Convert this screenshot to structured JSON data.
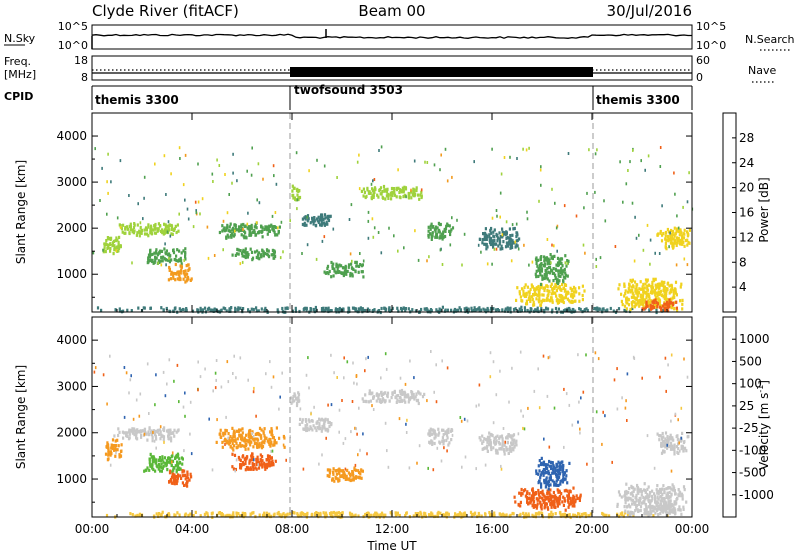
{
  "header": {
    "station": "Clyde River (fitACF)",
    "beam": "Beam 00",
    "date": "30/Jul/2016"
  },
  "panels": {
    "nsky": {
      "label": "N.Sky",
      "right_label": "N.Search",
      "left_ticks": [
        "10^5",
        "10^0"
      ],
      "right_ticks": [
        "10^5",
        "10^0"
      ]
    },
    "freq": {
      "label_top": "Freq.",
      "label_unit": "[MHz]",
      "right_label": "Nave",
      "left_ticks": [
        "18",
        "8"
      ],
      "right_ticks": [
        "60",
        "0"
      ]
    },
    "cpid": {
      "label": "CPID",
      "segments": [
        {
          "name": "themis 3300",
          "start_hour": 0,
          "end_hour": 8
        },
        {
          "name": "twofsound 3503",
          "start_hour": 8,
          "end_hour": 20
        },
        {
          "name": "themis 3300",
          "start_hour": 20,
          "end_hour": 24
        }
      ]
    }
  },
  "colors": {
    "power": [
      "#1f2bd6",
      "#2b4fa8",
      "#3e7a7a",
      "#4fa04f",
      "#9fd23c",
      "#f0d21e",
      "#f29a1e",
      "#f06018",
      "#e80000"
    ],
    "velocity": [
      "#1f3cc8",
      "#2f64b0",
      "#3c8a5a",
      "#5ab838",
      "#c8c8c8",
      "#f5c840",
      "#f59a20",
      "#f06018",
      "#e80000"
    ],
    "ground_scatter": "#c8c8c8"
  },
  "chart_data": [
    {
      "type": "heatmap",
      "name": "power",
      "xlabel": "",
      "ylabel": "Slant Range [km]",
      "x_tick_labels": [
        "00:00",
        "04:00",
        "08:00",
        "12:00",
        "16:00",
        "20:00",
        "00:00"
      ],
      "x_range_hours": [
        0,
        24
      ],
      "y_ticks": [
        1000,
        2000,
        3000,
        4000
      ],
      "y_range_km": [
        180,
        4500
      ],
      "colorbar": {
        "label": "Power [dB]",
        "ticks": [
          "28",
          "24",
          "20",
          "16",
          "12",
          "8",
          "4"
        ],
        "range": [
          0,
          30
        ]
      },
      "regions": [
        {
          "t0": 0.0,
          "t1": 23.9,
          "r0": 200,
          "r1": 320,
          "level": 6
        },
        {
          "t0": 0.4,
          "t1": 1.2,
          "r0": 1450,
          "r1": 1900,
          "level": 14
        },
        {
          "t0": 0.8,
          "t1": 3.6,
          "r0": 1850,
          "r1": 2150,
          "level": 16
        },
        {
          "t0": 2.0,
          "t1": 3.8,
          "r0": 1250,
          "r1": 1600,
          "level": 10
        },
        {
          "t0": 3.0,
          "t1": 4.0,
          "r0": 850,
          "r1": 1250,
          "level": 24
        },
        {
          "t0": 4.9,
          "t1": 7.7,
          "r0": 1800,
          "r1": 2150,
          "level": 12
        },
        {
          "t0": 5.5,
          "t1": 7.4,
          "r0": 1350,
          "r1": 1600,
          "level": 10
        },
        {
          "t0": 7.9,
          "t1": 8.3,
          "r0": 2600,
          "r1": 3000,
          "level": 16
        },
        {
          "t0": 8.2,
          "t1": 9.7,
          "r0": 2050,
          "r1": 2350,
          "level": 8
        },
        {
          "t0": 9.2,
          "t1": 10.9,
          "r0": 950,
          "r1": 1300,
          "level": 12
        },
        {
          "t0": 10.6,
          "t1": 13.4,
          "r0": 2650,
          "r1": 2950,
          "level": 14
        },
        {
          "t0": 13.3,
          "t1": 14.4,
          "r0": 1750,
          "r1": 2150,
          "level": 12
        },
        {
          "t0": 15.4,
          "t1": 17.1,
          "r0": 1550,
          "r1": 2050,
          "level": 8
        },
        {
          "t0": 16.8,
          "t1": 19.7,
          "r0": 350,
          "r1": 850,
          "level": 18
        },
        {
          "t0": 17.6,
          "t1": 19.1,
          "r0": 800,
          "r1": 1500,
          "level": 12
        },
        {
          "t0": 20.9,
          "t1": 23.8,
          "r0": 230,
          "r1": 950,
          "level": 20
        },
        {
          "t0": 21.9,
          "t1": 23.4,
          "r0": 230,
          "r1": 500,
          "level": 28
        },
        {
          "t0": 22.5,
          "t1": 23.9,
          "r0": 1550,
          "r1": 2050,
          "level": 18
        }
      ]
    },
    {
      "type": "heatmap",
      "name": "velocity",
      "xlabel": "Time UT",
      "ylabel": "Slant Range [km]",
      "x_tick_labels": [
        "00:00",
        "04:00",
        "08:00",
        "12:00",
        "16:00",
        "20:00",
        "00:00"
      ],
      "x_range_hours": [
        0,
        24
      ],
      "y_ticks": [
        1000,
        2000,
        3000,
        4000
      ],
      "y_range_km": [
        180,
        4500
      ],
      "colorbar": {
        "label": "Velocity [m s",
        "label_sup": "-1",
        "label_end": "]",
        "ticks": [
          "1000",
          "500",
          "100",
          "25",
          "-25",
          "-100",
          "-500",
          "-1000"
        ]
      },
      "regions": [
        {
          "t0": 0.0,
          "t1": 23.9,
          "r0": 200,
          "r1": 320,
          "cls": 5
        },
        {
          "t0": 0.4,
          "t1": 1.2,
          "r0": 1450,
          "r1": 1900,
          "cls": 6
        },
        {
          "t0": 0.8,
          "t1": 3.6,
          "r0": 1850,
          "r1": 2150,
          "cls": 4
        },
        {
          "t0": 2.0,
          "t1": 3.8,
          "r0": 1150,
          "r1": 1600,
          "cls": 3
        },
        {
          "t0": 3.0,
          "t1": 4.0,
          "r0": 850,
          "r1": 1250,
          "cls": 7
        },
        {
          "t0": 4.9,
          "t1": 7.7,
          "r0": 1650,
          "r1": 2150,
          "cls": 6
        },
        {
          "t0": 5.5,
          "t1": 7.4,
          "r0": 1200,
          "r1": 1600,
          "cls": 7
        },
        {
          "t0": 7.9,
          "t1": 8.3,
          "r0": 2600,
          "r1": 3000,
          "cls": 4
        },
        {
          "t0": 8.2,
          "t1": 9.7,
          "r0": 2050,
          "r1": 2350,
          "cls": 4
        },
        {
          "t0": 9.2,
          "t1": 10.9,
          "r0": 950,
          "r1": 1300,
          "cls": 6
        },
        {
          "t0": 10.6,
          "t1": 13.4,
          "r0": 2650,
          "r1": 2950,
          "cls": 4
        },
        {
          "t0": 13.3,
          "t1": 14.4,
          "r0": 1750,
          "r1": 2150,
          "cls": 4
        },
        {
          "t0": 15.4,
          "t1": 17.1,
          "r0": 1550,
          "r1": 2050,
          "cls": 4
        },
        {
          "t0": 16.8,
          "t1": 19.7,
          "r0": 350,
          "r1": 850,
          "cls": 7
        },
        {
          "t0": 17.6,
          "t1": 19.1,
          "r0": 800,
          "r1": 1500,
          "cls": 1
        },
        {
          "t0": 20.9,
          "t1": 23.8,
          "r0": 230,
          "r1": 950,
          "cls": 4
        },
        {
          "t0": 21.9,
          "t1": 23.4,
          "r0": 230,
          "r1": 500,
          "cls": 4
        },
        {
          "t0": 22.5,
          "t1": 23.9,
          "r0": 1550,
          "r1": 2050,
          "cls": 4
        }
      ]
    }
  ]
}
